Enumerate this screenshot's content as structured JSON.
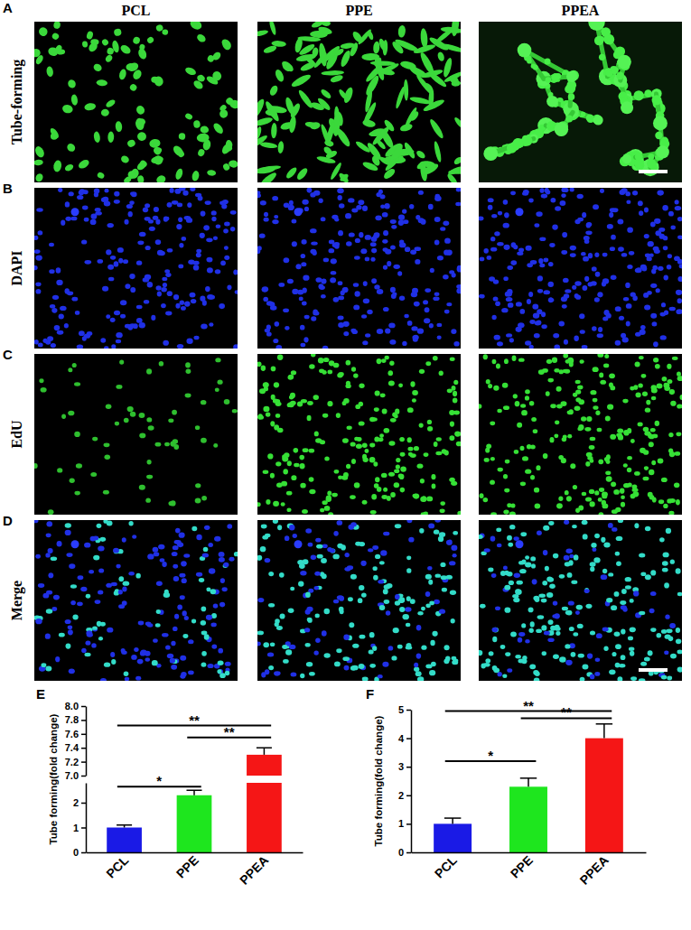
{
  "figure": {
    "columns": [
      "PCL",
      "PPE",
      "PPEA"
    ],
    "panels": [
      {
        "letter": "A",
        "label": "Tube-forming"
      },
      {
        "letter": "B",
        "label": "DAPI"
      },
      {
        "letter": "C",
        "label": "EdU"
      },
      {
        "letter": "D",
        "label": "Merge"
      }
    ]
  },
  "chart_data": [
    {
      "panel": "E",
      "type": "bar",
      "y_label": "Tube forming(fold change)",
      "categories": [
        "PCL",
        "PPE",
        "PPEA"
      ],
      "values": [
        1.0,
        2.3,
        7.3
      ],
      "errors": [
        0.1,
        0.2,
        0.1
      ],
      "colors": [
        "#1a1ae6",
        "#1ee61e",
        "#f51616"
      ],
      "ylim": [
        0,
        8.0
      ],
      "y_break": [
        2.8,
        7.0
      ],
      "yticks": [
        0,
        1,
        2,
        {
          "value": 7.0,
          "label": "7.0"
        },
        7.2,
        7.4,
        7.6,
        7.8,
        {
          "value": 8.0,
          "label": "8.0"
        }
      ],
      "annotations": [
        {
          "text": "*",
          "from": "PCL",
          "to": "PPE",
          "y": 2.65
        },
        {
          "text": "**",
          "from": "PCL",
          "to": "PPEA",
          "y": 7.72
        },
        {
          "text": "**",
          "from": "PPE",
          "to": "PPEA",
          "y": 7.55
        }
      ]
    },
    {
      "panel": "F",
      "type": "bar",
      "y_label": "Tube forming(fold change)",
      "categories": [
        "PCL",
        "PPE",
        "PPEA"
      ],
      "values": [
        1.0,
        2.3,
        4.0
      ],
      "errors": [
        0.2,
        0.3,
        0.5
      ],
      "colors": [
        "#1a1ae6",
        "#1ee61e",
        "#f51616"
      ],
      "ylim": [
        0,
        5
      ],
      "yticks": [
        0,
        1,
        2,
        3,
        4,
        5
      ],
      "annotations": [
        {
          "text": "*",
          "from": "PCL",
          "to": "PPE",
          "y": 3.2
        },
        {
          "text": "**",
          "from": "PCL",
          "to": "PPEA",
          "y": 4.95
        },
        {
          "text": "**",
          "from": "PPE",
          "to": "PPEA",
          "y": 4.7
        }
      ]
    }
  ]
}
